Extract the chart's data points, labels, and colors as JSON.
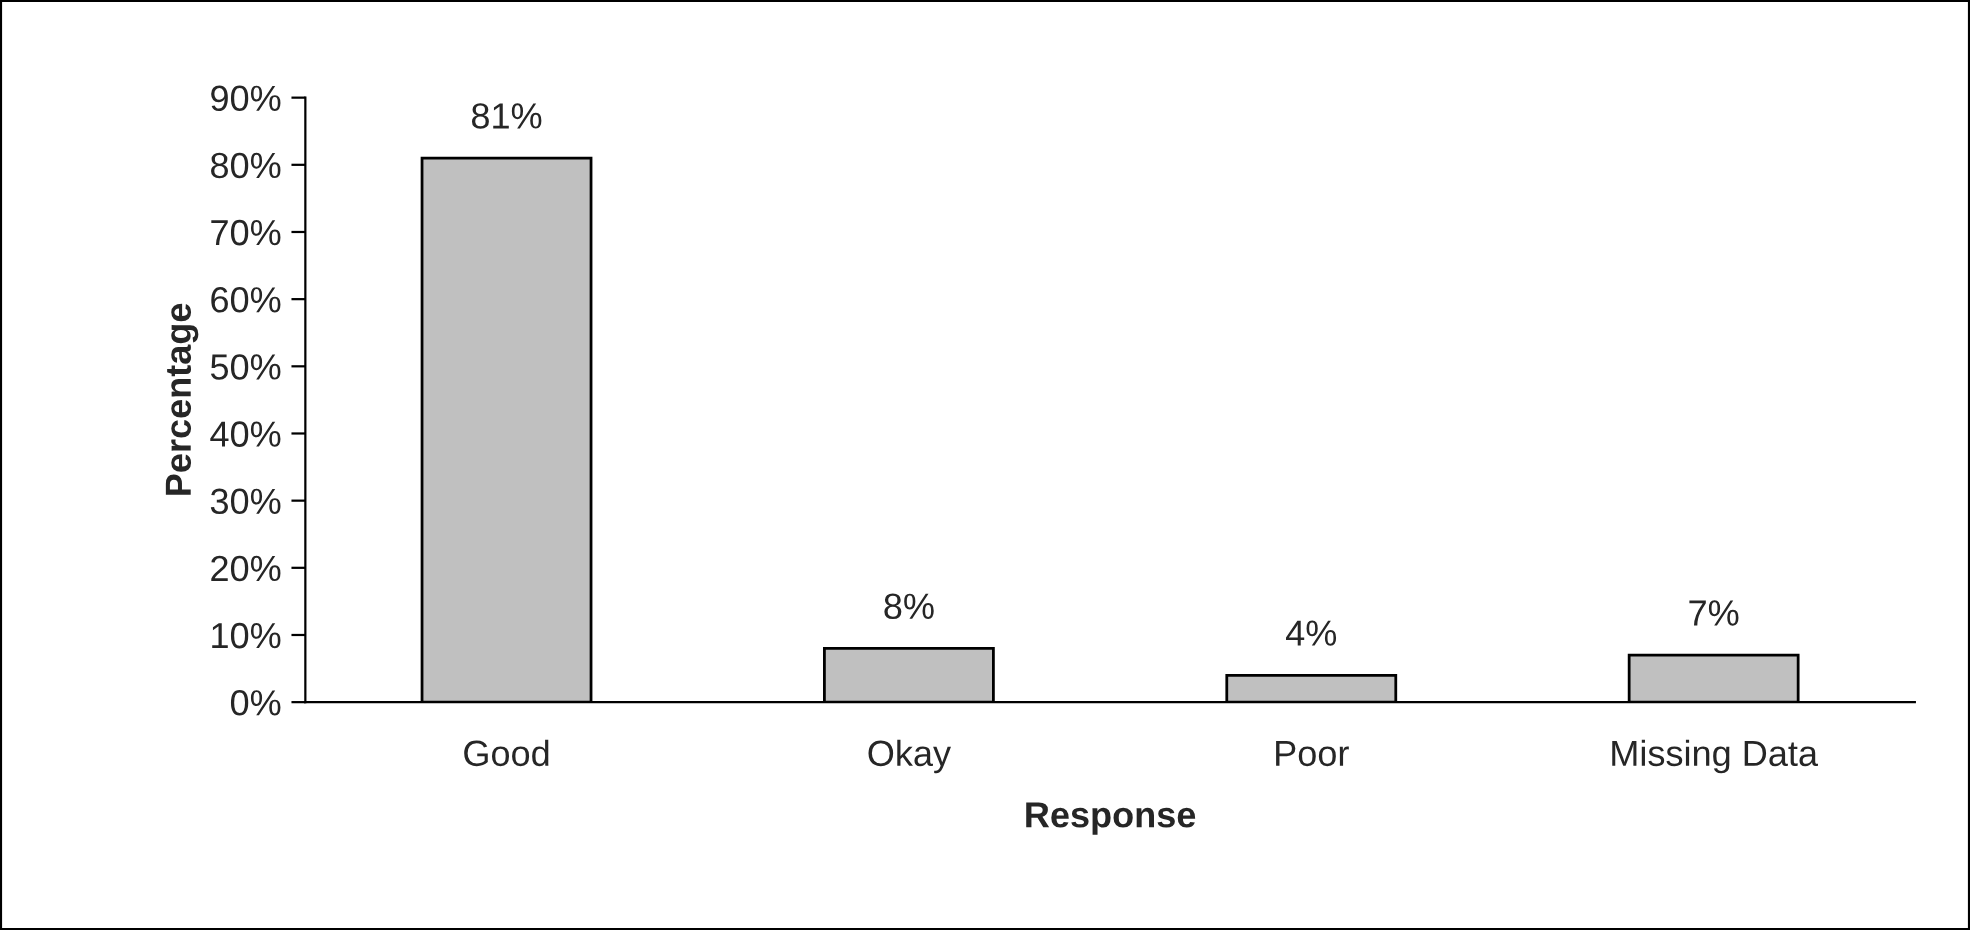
{
  "chart_data": {
    "type": "bar",
    "xlabel": "Response",
    "ylabel": "Percentage",
    "categories": [
      "Good",
      "Okay",
      "Poor",
      "Missing Data"
    ],
    "values": [
      81,
      8,
      4,
      7
    ],
    "value_labels": [
      "81%",
      "8%",
      "4%",
      "7%"
    ],
    "color": "#c0c0c0",
    "ylim": [
      0,
      90
    ],
    "yticks": [
      {
        "value": 0,
        "label": "0%"
      },
      {
        "value": 10,
        "label": "10%"
      },
      {
        "value": 20,
        "label": "20%"
      },
      {
        "value": 30,
        "label": "30%"
      },
      {
        "value": 40,
        "label": "40%"
      },
      {
        "value": 50,
        "label": "50%"
      },
      {
        "value": 60,
        "label": "60%"
      },
      {
        "value": 70,
        "label": "70%"
      },
      {
        "value": 80,
        "label": "80%"
      },
      {
        "value": 90,
        "label": "90%"
      }
    ],
    "grid": false,
    "legend": false
  }
}
